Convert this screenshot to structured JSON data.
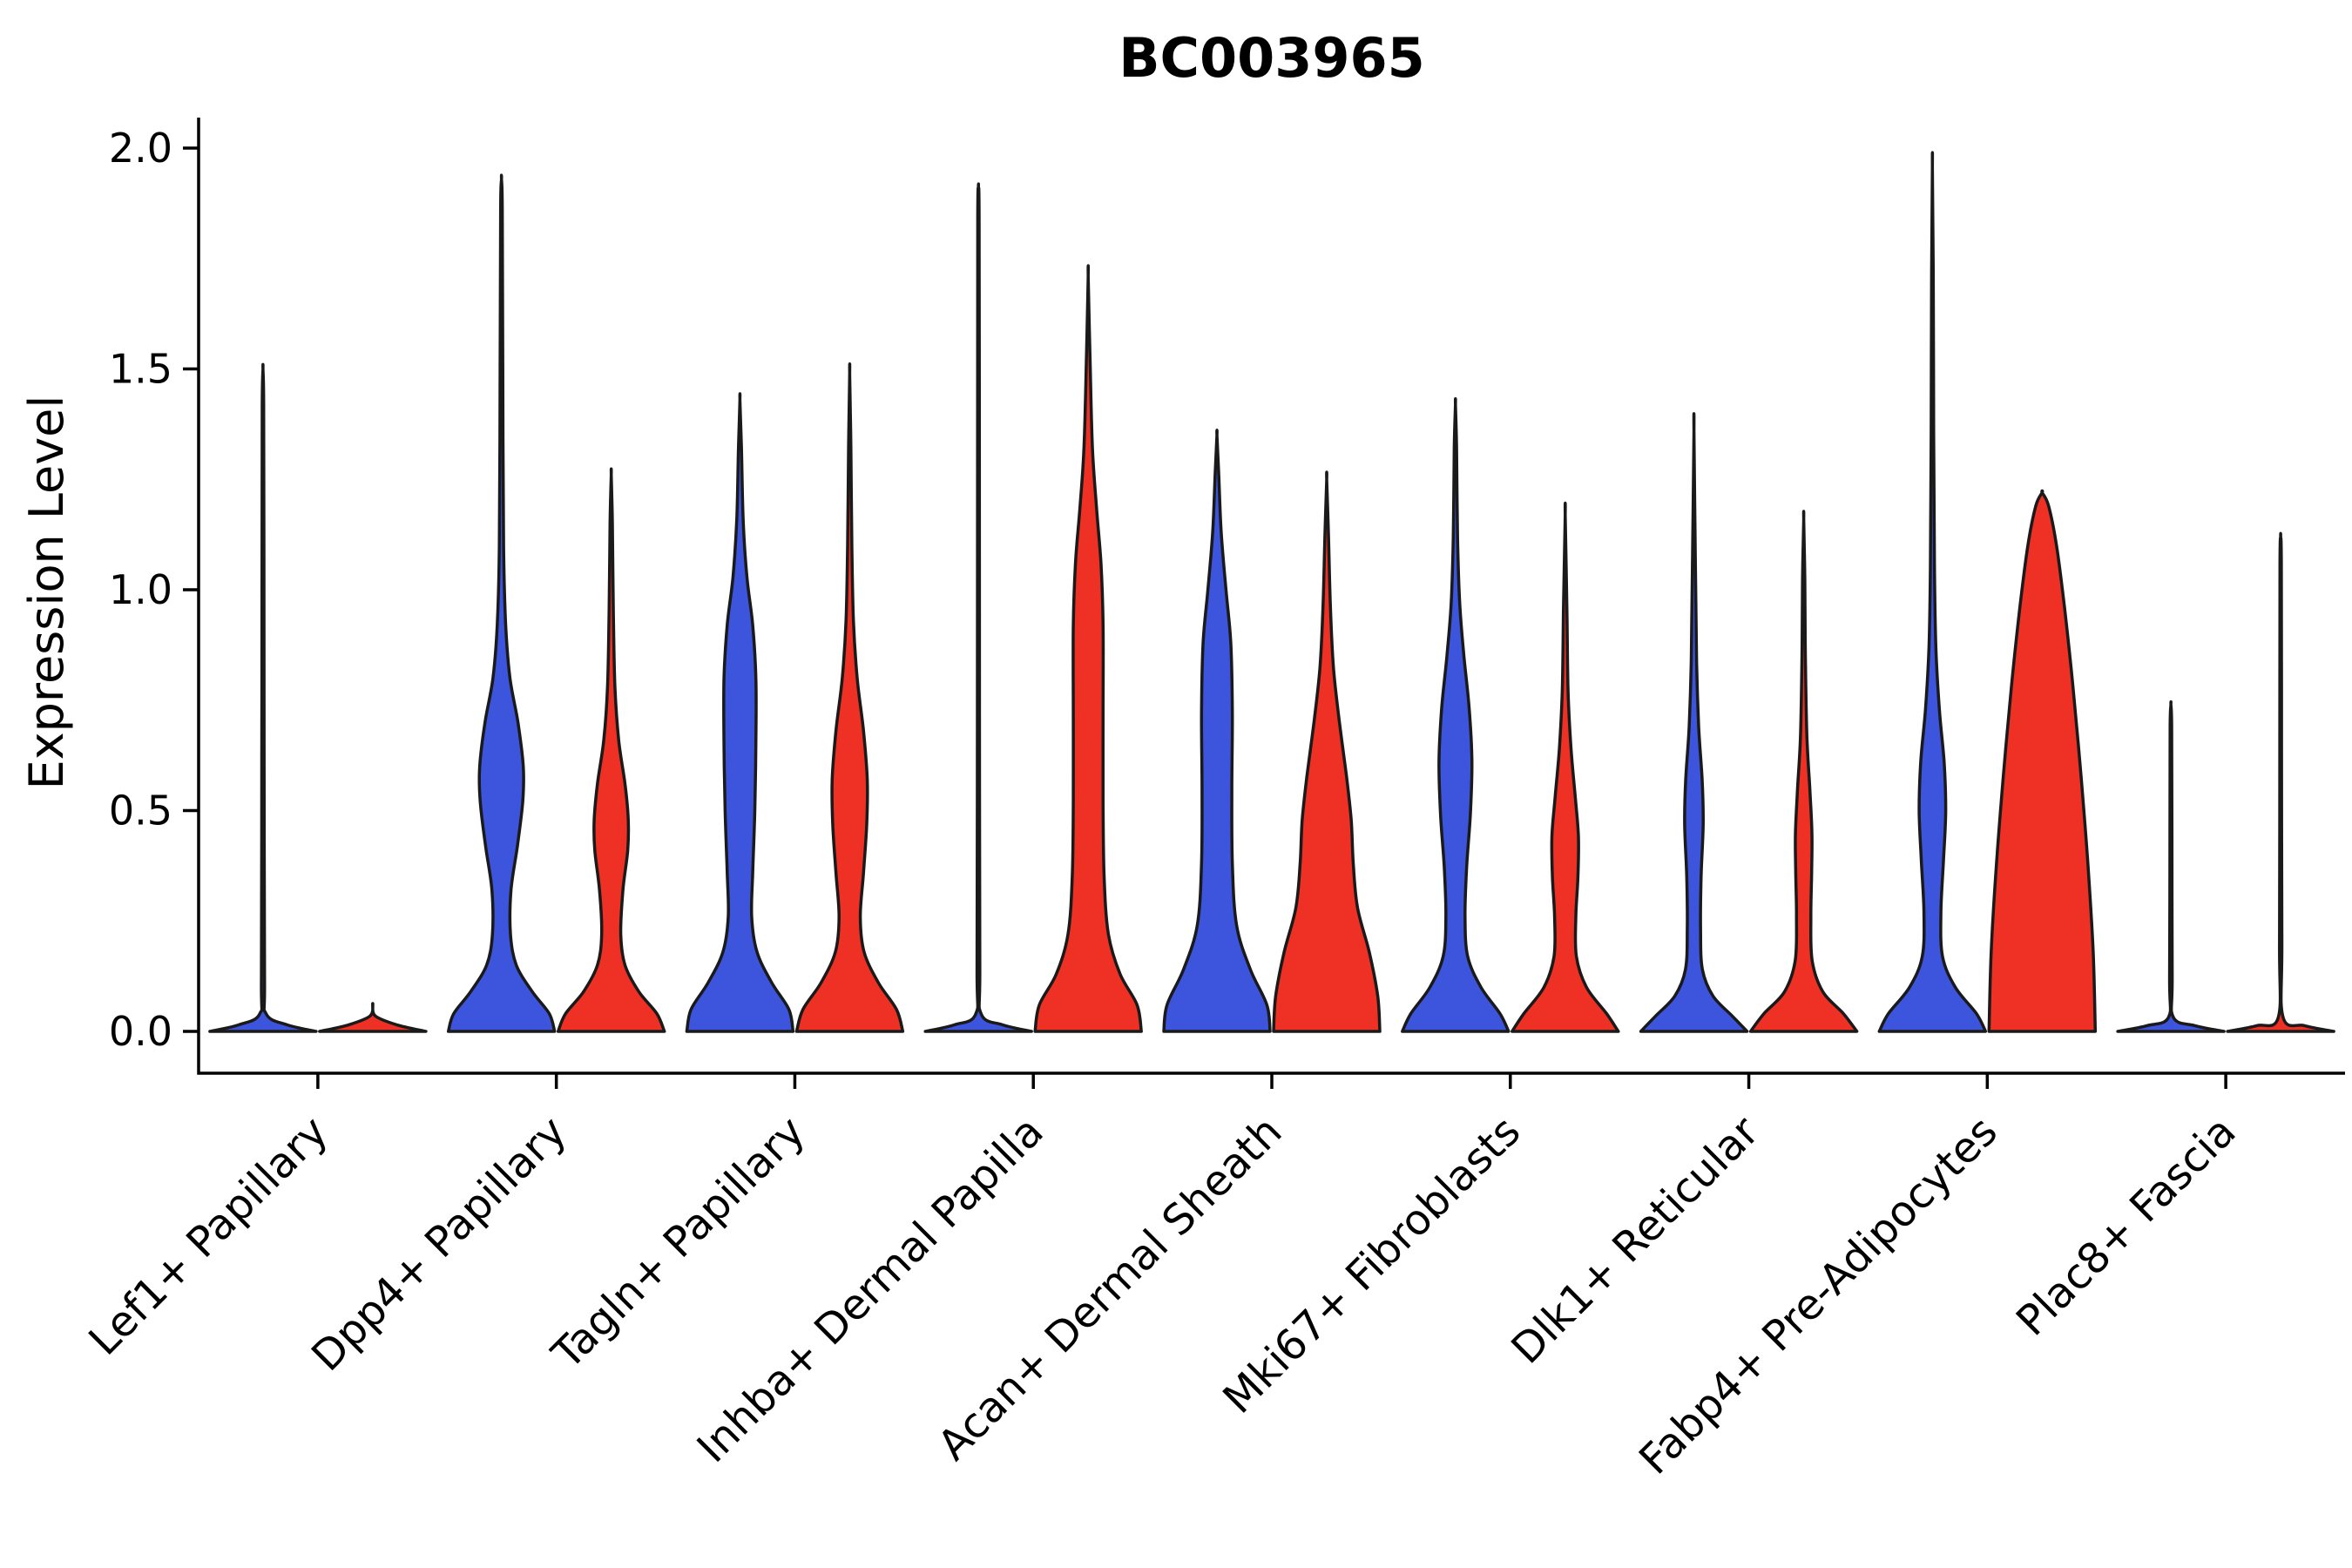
{
  "title": "BC003965",
  "y_axis": {
    "label": "Expression Level"
  },
  "colors": {
    "group_blue": "#3D55DD",
    "group_red": "#EE3124",
    "outline": "#1A1A1A",
    "axis": "#000000",
    "background": "#FFFFFF"
  },
  "chart_data": {
    "type": "violin",
    "split": true,
    "title": "BC003965",
    "ylabel": "Expression Level",
    "xlabel": "",
    "ylim": [
      0,
      2.05
    ],
    "y_ticks": [
      0.0,
      0.5,
      1.0,
      1.5,
      2.0
    ],
    "grid": false,
    "legend": "none",
    "categories": [
      "Lef1+ Papillary",
      "Dpp4+ Papillary",
      "Tagln+ Papillary",
      "Inhba+ Dermal Papilla",
      "Acan+ Dermal Sheath",
      "Mki67+ Fibroblasts",
      "Dlk1+ Reticular",
      "Fabp4+ Pre-Adipocytes",
      "Plac8+ Fascia"
    ],
    "series": [
      {
        "key": "blue",
        "color": "#3D55DD"
      },
      {
        "key": "red",
        "color": "#EE3124"
      }
    ],
    "violins": [
      {
        "category": "Lef1+ Papillary",
        "blue": {
          "max": 1.5,
          "profile": [
            [
              0,
              1.0
            ],
            [
              0.015,
              0.45
            ],
            [
              0.04,
              0.06
            ],
            [
              0.12,
              0.03
            ],
            [
              0.6,
              0.022
            ],
            [
              1.1,
              0.018
            ],
            [
              1.42,
              0.014
            ],
            [
              1.5,
              0
            ]
          ]
        },
        "red": {
          "max": 0.06,
          "profile": [
            [
              0,
              1.0
            ],
            [
              0.015,
              0.45
            ],
            [
              0.035,
              0.05
            ],
            [
              0.06,
              0
            ]
          ]
        }
      },
      {
        "category": "Dpp4+ Papillary",
        "blue": {
          "max": 1.93,
          "profile": [
            [
              0,
              1.0
            ],
            [
              0.04,
              0.9
            ],
            [
              0.09,
              0.58
            ],
            [
              0.15,
              0.28
            ],
            [
              0.22,
              0.17
            ],
            [
              0.32,
              0.18
            ],
            [
              0.42,
              0.3
            ],
            [
              0.52,
              0.4
            ],
            [
              0.6,
              0.41
            ],
            [
              0.7,
              0.31
            ],
            [
              0.8,
              0.16
            ],
            [
              0.92,
              0.08
            ],
            [
              1.1,
              0.04
            ],
            [
              1.5,
              0.025
            ],
            [
              1.86,
              0.016
            ],
            [
              1.93,
              0
            ]
          ]
        },
        "red": {
          "max": 1.26,
          "profile": [
            [
              0,
              1.0
            ],
            [
              0.04,
              0.86
            ],
            [
              0.09,
              0.52
            ],
            [
              0.15,
              0.26
            ],
            [
              0.22,
              0.18
            ],
            [
              0.32,
              0.22
            ],
            [
              0.41,
              0.31
            ],
            [
              0.48,
              0.32
            ],
            [
              0.56,
              0.26
            ],
            [
              0.66,
              0.14
            ],
            [
              0.78,
              0.07
            ],
            [
              0.95,
              0.04
            ],
            [
              1.15,
              0.022
            ],
            [
              1.26,
              0
            ]
          ]
        }
      },
      {
        "category": "Tagln+ Papillary",
        "blue": {
          "max": 1.43,
          "profile": [
            [
              0,
              1.0
            ],
            [
              0.05,
              0.92
            ],
            [
              0.11,
              0.6
            ],
            [
              0.18,
              0.32
            ],
            [
              0.26,
              0.22
            ],
            [
              0.36,
              0.24
            ],
            [
              0.5,
              0.28
            ],
            [
              0.65,
              0.3
            ],
            [
              0.8,
              0.3
            ],
            [
              0.92,
              0.24
            ],
            [
              1.03,
              0.13
            ],
            [
              1.16,
              0.06
            ],
            [
              1.32,
              0.028
            ],
            [
              1.43,
              0
            ]
          ]
        },
        "red": {
          "max": 1.49,
          "profile": [
            [
              0,
              1.0
            ],
            [
              0.05,
              0.88
            ],
            [
              0.11,
              0.54
            ],
            [
              0.18,
              0.27
            ],
            [
              0.26,
              0.2
            ],
            [
              0.36,
              0.26
            ],
            [
              0.47,
              0.32
            ],
            [
              0.57,
              0.33
            ],
            [
              0.68,
              0.26
            ],
            [
              0.8,
              0.14
            ],
            [
              0.93,
              0.07
            ],
            [
              1.1,
              0.04
            ],
            [
              1.32,
              0.022
            ],
            [
              1.49,
              0
            ]
          ]
        }
      },
      {
        "category": "Inhba+ Dermal Papilla",
        "blue": {
          "max": 1.91,
          "profile": [
            [
              0,
              1.0
            ],
            [
              0.015,
              0.45
            ],
            [
              0.04,
              0.05
            ],
            [
              0.15,
              0.026
            ],
            [
              0.7,
              0.02
            ],
            [
              1.3,
              0.017
            ],
            [
              1.84,
              0.013
            ],
            [
              1.91,
              0
            ]
          ]
        },
        "red": {
          "max": 1.71,
          "profile": [
            [
              0,
              1.0
            ],
            [
              0.06,
              0.92
            ],
            [
              0.13,
              0.6
            ],
            [
              0.22,
              0.38
            ],
            [
              0.35,
              0.3
            ],
            [
              0.52,
              0.28
            ],
            [
              0.72,
              0.28
            ],
            [
              0.92,
              0.28
            ],
            [
              1.06,
              0.24
            ],
            [
              1.18,
              0.16
            ],
            [
              1.32,
              0.08
            ],
            [
              1.52,
              0.035
            ],
            [
              1.71,
              0
            ]
          ]
        }
      },
      {
        "category": "Acan+ Dermal Sheath",
        "blue": {
          "max": 1.35,
          "profile": [
            [
              0,
              1.0
            ],
            [
              0.06,
              0.94
            ],
            [
              0.14,
              0.63
            ],
            [
              0.24,
              0.37
            ],
            [
              0.38,
              0.29
            ],
            [
              0.55,
              0.28
            ],
            [
              0.72,
              0.29
            ],
            [
              0.88,
              0.26
            ],
            [
              1.0,
              0.17
            ],
            [
              1.13,
              0.08
            ],
            [
              1.26,
              0.035
            ],
            [
              1.35,
              0
            ]
          ]
        },
        "red": {
          "max": 1.25,
          "profile": [
            [
              0,
              1.0
            ],
            [
              0.08,
              0.96
            ],
            [
              0.18,
              0.8
            ],
            [
              0.28,
              0.58
            ],
            [
              0.38,
              0.5
            ],
            [
              0.48,
              0.46
            ],
            [
              0.58,
              0.37
            ],
            [
              0.7,
              0.24
            ],
            [
              0.82,
              0.13
            ],
            [
              0.96,
              0.07
            ],
            [
              1.12,
              0.035
            ],
            [
              1.25,
              0
            ]
          ]
        }
      },
      {
        "category": "Mki67+ Fibroblasts",
        "blue": {
          "max": 1.42,
          "profile": [
            [
              0,
              1.0
            ],
            [
              0.04,
              0.84
            ],
            [
              0.1,
              0.48
            ],
            [
              0.17,
              0.23
            ],
            [
              0.26,
              0.18
            ],
            [
              0.37,
              0.21
            ],
            [
              0.49,
              0.28
            ],
            [
              0.61,
              0.31
            ],
            [
              0.73,
              0.26
            ],
            [
              0.85,
              0.16
            ],
            [
              0.97,
              0.08
            ],
            [
              1.12,
              0.04
            ],
            [
              1.32,
              0.022
            ],
            [
              1.42,
              0
            ]
          ]
        },
        "red": {
          "max": 1.17,
          "profile": [
            [
              0,
              1.0
            ],
            [
              0.04,
              0.78
            ],
            [
              0.1,
              0.4
            ],
            [
              0.17,
              0.21
            ],
            [
              0.26,
              0.2
            ],
            [
              0.35,
              0.24
            ],
            [
              0.44,
              0.25
            ],
            [
              0.53,
              0.19
            ],
            [
              0.64,
              0.11
            ],
            [
              0.77,
              0.055
            ],
            [
              0.96,
              0.032
            ],
            [
              1.17,
              0
            ]
          ]
        }
      },
      {
        "category": "Dlk1+ Reticular",
        "blue": {
          "max": 1.36,
          "profile": [
            [
              0,
              1.0
            ],
            [
              0.035,
              0.72
            ],
            [
              0.08,
              0.36
            ],
            [
              0.14,
              0.16
            ],
            [
              0.23,
              0.125
            ],
            [
              0.35,
              0.135
            ],
            [
              0.47,
              0.175
            ],
            [
              0.57,
              0.155
            ],
            [
              0.69,
              0.09
            ],
            [
              0.84,
              0.05
            ],
            [
              1.05,
              0.028
            ],
            [
              1.36,
              0
            ]
          ]
        },
        "red": {
          "max": 1.16,
          "profile": [
            [
              0,
              1.0
            ],
            [
              0.04,
              0.75
            ],
            [
              0.09,
              0.36
            ],
            [
              0.16,
              0.16
            ],
            [
              0.26,
              0.135
            ],
            [
              0.36,
              0.15
            ],
            [
              0.45,
              0.155
            ],
            [
              0.55,
              0.115
            ],
            [
              0.67,
              0.06
            ],
            [
              0.85,
              0.032
            ],
            [
              1.02,
              0.022
            ],
            [
              1.16,
              0
            ]
          ]
        }
      },
      {
        "category": "Fabp4+ Pre-Adipocytes",
        "blue": {
          "max": 1.96,
          "profile": [
            [
              0,
              1.0
            ],
            [
              0.04,
              0.83
            ],
            [
              0.1,
              0.43
            ],
            [
              0.17,
              0.19
            ],
            [
              0.27,
              0.16
            ],
            [
              0.39,
              0.21
            ],
            [
              0.5,
              0.25
            ],
            [
              0.61,
              0.22
            ],
            [
              0.73,
              0.13
            ],
            [
              0.87,
              0.065
            ],
            [
              1.05,
              0.038
            ],
            [
              1.35,
              0.024
            ],
            [
              1.72,
              0.016
            ],
            [
              1.96,
              0
            ]
          ]
        },
        "red": {
          "max": 1.22,
          "profile": [
            [
              0,
              1.0
            ],
            [
              0.18,
              0.96
            ],
            [
              0.38,
              0.86
            ],
            [
              0.58,
              0.73
            ],
            [
              0.78,
              0.58
            ],
            [
              0.96,
              0.42
            ],
            [
              1.1,
              0.27
            ],
            [
              1.19,
              0.12
            ],
            [
              1.22,
              0
            ]
          ]
        }
      },
      {
        "category": "Plac8+ Fascia",
        "blue": {
          "max": 0.74,
          "profile": [
            [
              0,
              1.0
            ],
            [
              0.013,
              0.45
            ],
            [
              0.032,
              0.045
            ],
            [
              0.12,
              0.024
            ],
            [
              0.45,
              0.019
            ],
            [
              0.69,
              0.015
            ],
            [
              0.74,
              0
            ]
          ]
        },
        "red": {
          "max": 1.12,
          "profile": [
            [
              0,
              1.0
            ],
            [
              0.013,
              0.45
            ],
            [
              0.032,
              0.045
            ],
            [
              0.2,
              0.022
            ],
            [
              0.65,
              0.017
            ],
            [
              1.06,
              0.013
            ],
            [
              1.12,
              0
            ]
          ]
        }
      }
    ]
  }
}
